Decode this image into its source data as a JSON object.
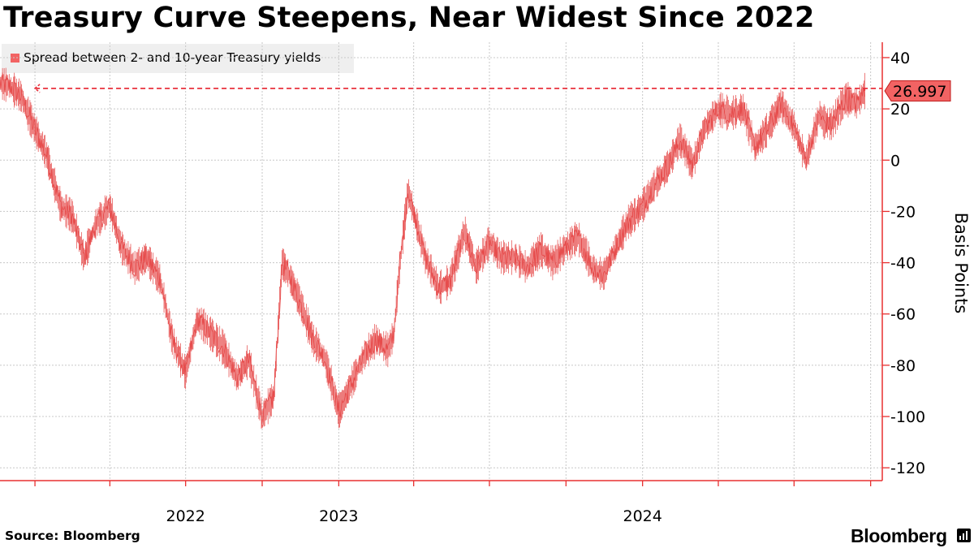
{
  "title": "Treasury Curve Steepens, Near Widest Since 2022",
  "legend": {
    "label": "Spread between 2- and 10-year Treasury yields",
    "color": "#f26363"
  },
  "source": "Source: Bloomberg",
  "brand": "Bloomberg",
  "brand_icon": "bloomberg-terminal-icon",
  "colors": {
    "series": "#e54444",
    "axis": "#e83030",
    "grid": "#c8c8c8",
    "callout": "#f26363",
    "reference": "#e8313c"
  },
  "chart_data": {
    "type": "line",
    "title": "Treasury Curve Steepens, Near Widest Since 2022",
    "ylabel": "Basis Points",
    "xlabel": "",
    "ylim": [
      -125,
      46
    ],
    "yticks": [
      40,
      20,
      0,
      -20,
      -40,
      -60,
      -80,
      -100,
      -120
    ],
    "ytick_labels": [
      "40",
      "20",
      "0",
      "-20",
      "-40",
      "-60",
      "-80",
      "-100",
      "-120"
    ],
    "xlim": [
      "2021-11-20",
      "2024-10-15"
    ],
    "xticks": [
      "2022-01-01",
      "2022-04-01",
      "2022-07-01",
      "2022-10-01",
      "2023-01-01",
      "2023-04-01",
      "2023-07-01",
      "2023-10-01",
      "2024-01-01",
      "2024-04-01",
      "2024-07-01",
      "2024-10-01"
    ],
    "year_labels": [
      {
        "label": "2022",
        "date": "2022-07-01"
      },
      {
        "label": "2023",
        "date": "2023-01-01"
      },
      {
        "label": "2024",
        "date": "2024-01-01"
      }
    ],
    "grid": true,
    "legend_position": "top-left",
    "last_value": 26.997,
    "last_value_label": "26.997",
    "reference_line": {
      "value": 28,
      "from": "2022-01-01",
      "style": "dashed"
    },
    "series": [
      {
        "name": "Spread between 2- and 10-year Treasury yields",
        "x": [
          "2021-11-20",
          "2021-12-01",
          "2021-12-15",
          "2022-01-01",
          "2022-01-15",
          "2022-02-01",
          "2022-02-15",
          "2022-03-01",
          "2022-03-15",
          "2022-04-01",
          "2022-04-15",
          "2022-05-01",
          "2022-05-15",
          "2022-06-01",
          "2022-06-15",
          "2022-07-01",
          "2022-07-15",
          "2022-08-01",
          "2022-08-15",
          "2022-09-01",
          "2022-09-15",
          "2022-10-01",
          "2022-10-15",
          "2022-10-25",
          "2022-11-01",
          "2022-11-15",
          "2022-12-01",
          "2022-12-15",
          "2023-01-01",
          "2023-01-15",
          "2023-02-01",
          "2023-02-15",
          "2023-03-01",
          "2023-03-08",
          "2023-03-15",
          "2023-03-25",
          "2023-04-01",
          "2023-04-15",
          "2023-05-01",
          "2023-05-15",
          "2023-06-01",
          "2023-06-15",
          "2023-07-01",
          "2023-07-15",
          "2023-08-01",
          "2023-08-15",
          "2023-09-01",
          "2023-09-15",
          "2023-10-01",
          "2023-10-15",
          "2023-10-25",
          "2023-11-01",
          "2023-11-15",
          "2023-12-01",
          "2023-12-15",
          "2024-01-01",
          "2024-01-15",
          "2024-02-01",
          "2024-02-15",
          "2024-03-01",
          "2024-03-15",
          "2024-04-01",
          "2024-04-15",
          "2024-05-01",
          "2024-05-15",
          "2024-06-01",
          "2024-06-15",
          "2024-07-01",
          "2024-07-15",
          "2024-08-01",
          "2024-08-05",
          "2024-08-15",
          "2024-09-01",
          "2024-09-15",
          "2024-09-24"
        ],
        "values": [
          30,
          29,
          25,
          12,
          2,
          -18,
          -22,
          -38,
          -25,
          -18,
          -34,
          -42,
          -38,
          -47,
          -70,
          -83,
          -62,
          -68,
          -73,
          -85,
          -78,
          -100,
          -92,
          -40,
          -44,
          -55,
          -70,
          -77,
          -98,
          -88,
          -76,
          -70,
          -74,
          -68,
          -42,
          -12,
          -20,
          -38,
          -50,
          -47,
          -28,
          -42,
          -32,
          -38,
          -38,
          -42,
          -35,
          -40,
          -34,
          -30,
          -36,
          -42,
          -45,
          -33,
          -24,
          -18,
          -10,
          -2,
          8,
          -2,
          12,
          20,
          18,
          20,
          5,
          13,
          22,
          13,
          0,
          18,
          15,
          14,
          24,
          22,
          27
        ]
      }
    ]
  }
}
